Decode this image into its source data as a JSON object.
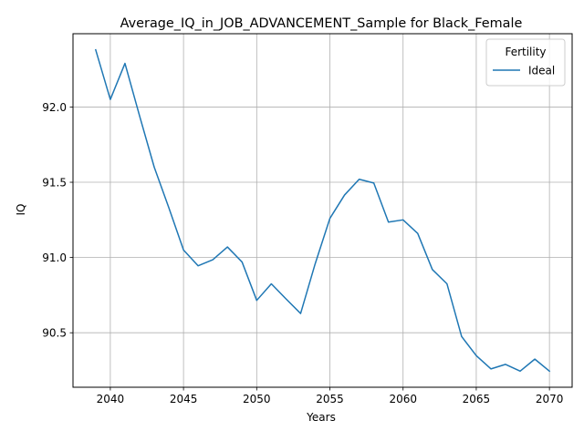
{
  "chart_data": {
    "type": "line",
    "title": "Average_IQ_in_JOB_ADVANCEMENT_Sample for Black_Female",
    "xlabel": "Years",
    "ylabel": "IQ",
    "xlim": [
      2037.45,
      2071.55
    ],
    "ylim": [
      90.138,
      92.487
    ],
    "x_ticks": [
      2040,
      2045,
      2050,
      2055,
      2060,
      2065,
      2070
    ],
    "x_tick_labels": [
      "2040",
      "2045",
      "2050",
      "2055",
      "2060",
      "2065",
      "2070"
    ],
    "y_ticks": [
      90.5,
      91.0,
      91.5,
      92.0
    ],
    "y_tick_labels": [
      "90.5",
      "91.0",
      "91.5",
      "92.0"
    ],
    "grid": true,
    "legend": {
      "title": "Fertility",
      "placement": "top-right"
    },
    "series": [
      {
        "name": "Ideal",
        "color": "#1f77b4",
        "x": [
          2039,
          2040,
          2041,
          2042,
          2043,
          2044,
          2045,
          2046,
          2047,
          2048,
          2049,
          2050,
          2051,
          2052,
          2053,
          2054,
          2055,
          2056,
          2057,
          2058,
          2059,
          2060,
          2061,
          2062,
          2063,
          2064,
          2065,
          2066,
          2067,
          2068,
          2069,
          2070
        ],
        "y": [
          92.38,
          92.05,
          92.29,
          91.94,
          91.6,
          91.33,
          91.05,
          90.945,
          90.985,
          91.07,
          90.97,
          90.715,
          90.825,
          90.725,
          90.628,
          90.96,
          91.26,
          91.415,
          91.52,
          91.495,
          91.235,
          91.25,
          91.16,
          90.92,
          90.825,
          90.475,
          90.348,
          90.26,
          90.29,
          90.245,
          90.325,
          90.245
        ]
      }
    ]
  }
}
